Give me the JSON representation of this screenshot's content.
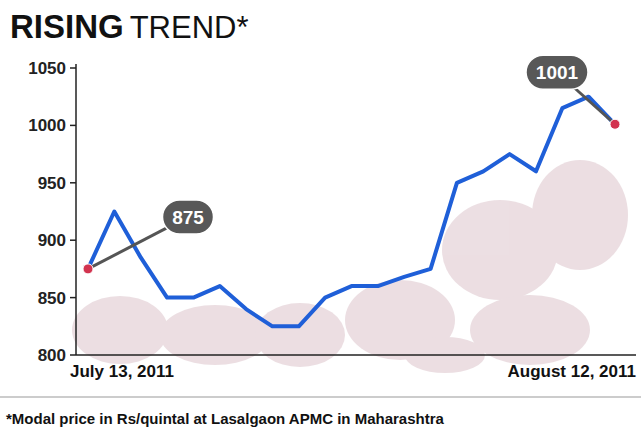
{
  "chart_data": {
    "type": "line",
    "title": "RISING TREND*",
    "footnote": "*Modal price in Rs/quintal at Lasalgaon APMC in Maharashtra",
    "categories": [
      "July 13, 2011",
      null,
      null,
      null,
      null,
      null,
      null,
      null,
      null,
      null,
      null,
      null,
      null,
      null,
      null,
      null,
      null,
      null,
      null,
      null,
      "August 12, 2011"
    ],
    "values": [
      875,
      925,
      885,
      850,
      850,
      860,
      840,
      825,
      825,
      850,
      860,
      860,
      868,
      875,
      950,
      960,
      975,
      960,
      1015,
      1025,
      1001
    ],
    "value_labels": [
      "875",
      null,
      null,
      null,
      null,
      null,
      null,
      null,
      null,
      null,
      null,
      null,
      null,
      null,
      null,
      null,
      null,
      null,
      null,
      null,
      "1001"
    ],
    "color": "#1f5fd8",
    "ylim": [
      800,
      1050
    ],
    "yticks": [
      800,
      850,
      900,
      950,
      1000,
      1050
    ],
    "grid": false
  }
}
